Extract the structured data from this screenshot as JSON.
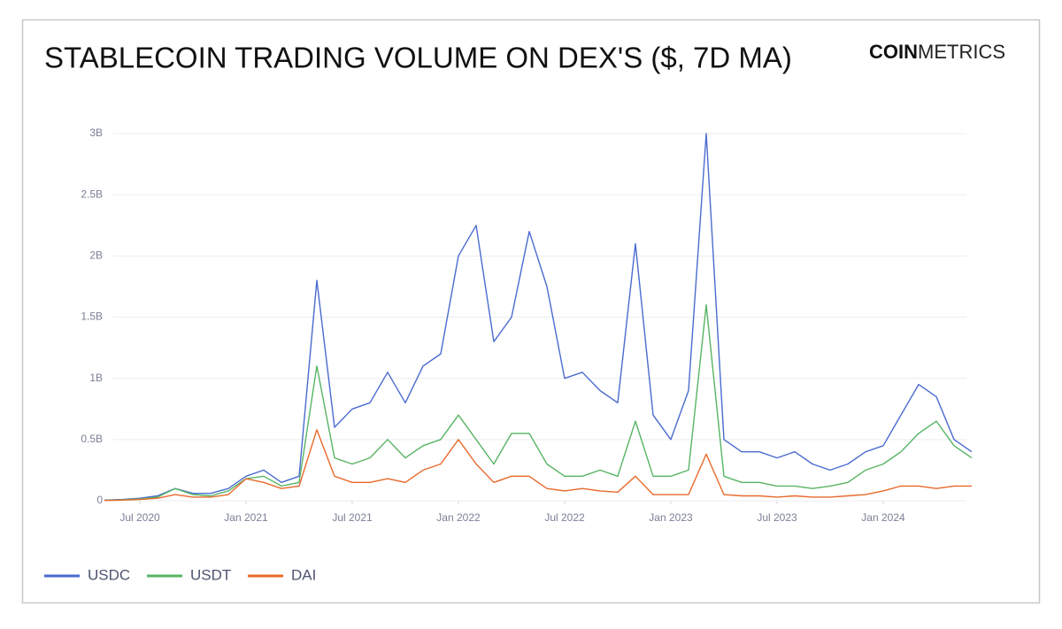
{
  "chart_data": {
    "type": "line",
    "title": "STABLECOIN TRADING VOLUME ON DEX'S ($, 7D MA)",
    "logo": {
      "bold": "COIN",
      "light": "METRICS"
    },
    "x": [
      "2020-05",
      "2020-06",
      "2020-07",
      "2020-08",
      "2020-09",
      "2020-10",
      "2020-11",
      "2020-12",
      "2021-01",
      "2021-02",
      "2021-03",
      "2021-04",
      "2021-05",
      "2021-06",
      "2021-07",
      "2021-08",
      "2021-09",
      "2021-10",
      "2021-11",
      "2021-12",
      "2022-01",
      "2022-02",
      "2022-03",
      "2022-04",
      "2022-05",
      "2022-06",
      "2022-07",
      "2022-08",
      "2022-09",
      "2022-10",
      "2022-11",
      "2022-12",
      "2023-01",
      "2023-02",
      "2023-03",
      "2023-04",
      "2023-05",
      "2023-06",
      "2023-07",
      "2023-08",
      "2023-09",
      "2023-10",
      "2023-11",
      "2023-12",
      "2024-01",
      "2024-02",
      "2024-03",
      "2024-04",
      "2024-05",
      "2024-06"
    ],
    "xlim": [
      "2020-05",
      "2024-06"
    ],
    "xticks": [
      {
        "value": "2020-07",
        "label": "Jul 2020"
      },
      {
        "value": "2021-01",
        "label": "Jan 2021"
      },
      {
        "value": "2021-07",
        "label": "Jul 2021"
      },
      {
        "value": "2022-01",
        "label": "Jan 2022"
      },
      {
        "value": "2022-07",
        "label": "Jul 2022"
      },
      {
        "value": "2023-01",
        "label": "Jan 2023"
      },
      {
        "value": "2023-07",
        "label": "Jul 2023"
      },
      {
        "value": "2024-01",
        "label": "Jan 2024"
      }
    ],
    "ylim": [
      0,
      3000000000
    ],
    "yticks": [
      0,
      {
        "value": 500000000,
        "label": "0.5B"
      },
      {
        "value": 1000000000,
        "label": "1B"
      },
      {
        "value": 1500000000,
        "label": "1.5B"
      },
      {
        "value": 2000000000,
        "label": "2B"
      },
      {
        "value": 2500000000,
        "label": "2.5B"
      },
      {
        "value": 3000000000,
        "label": "3B"
      }
    ],
    "grid": true,
    "legend": "bottom-left",
    "series": [
      {
        "name": "USDC",
        "color": "#4a6bcf",
        "values": [
          5000000,
          10000000,
          20000000,
          40000000,
          100000000,
          60000000,
          60000000,
          100000000,
          200000000,
          250000000,
          150000000,
          200000000,
          1800000000,
          600000000,
          750000000,
          800000000,
          1050000000,
          800000000,
          1100000000,
          1200000000,
          2000000000,
          2250000000,
          1300000000,
          1500000000,
          2200000000,
          1750000000,
          1000000000,
          1050000000,
          900000000,
          800000000,
          2100000000,
          700000000,
          500000000,
          900000000,
          3000000000,
          500000000,
          400000000,
          400000000,
          350000000,
          400000000,
          300000000,
          250000000,
          300000000,
          400000000,
          450000000,
          700000000,
          950000000,
          850000000,
          500000000,
          400000000
        ]
      },
      {
        "name": "USDT",
        "color": "#57b464",
        "values": [
          3000000,
          8000000,
          15000000,
          30000000,
          100000000,
          50000000,
          40000000,
          80000000,
          180000000,
          200000000,
          120000000,
          150000000,
          1100000000,
          350000000,
          300000000,
          350000000,
          500000000,
          350000000,
          450000000,
          500000000,
          700000000,
          500000000,
          300000000,
          550000000,
          550000000,
          300000000,
          200000000,
          200000000,
          250000000,
          200000000,
          650000000,
          200000000,
          200000000,
          250000000,
          1600000000,
          200000000,
          150000000,
          150000000,
          120000000,
          120000000,
          100000000,
          120000000,
          150000000,
          250000000,
          300000000,
          400000000,
          550000000,
          650000000,
          450000000,
          350000000
        ]
      },
      {
        "name": "DAI",
        "color": "#e8692a",
        "values": [
          2000000,
          5000000,
          10000000,
          20000000,
          50000000,
          30000000,
          30000000,
          50000000,
          180000000,
          150000000,
          100000000,
          120000000,
          580000000,
          200000000,
          150000000,
          150000000,
          180000000,
          150000000,
          250000000,
          300000000,
          500000000,
          300000000,
          150000000,
          200000000,
          200000000,
          100000000,
          80000000,
          100000000,
          80000000,
          70000000,
          200000000,
          50000000,
          50000000,
          50000000,
          380000000,
          50000000,
          40000000,
          40000000,
          30000000,
          40000000,
          30000000,
          30000000,
          40000000,
          50000000,
          80000000,
          120000000,
          120000000,
          100000000,
          120000000,
          120000000
        ]
      }
    ]
  }
}
